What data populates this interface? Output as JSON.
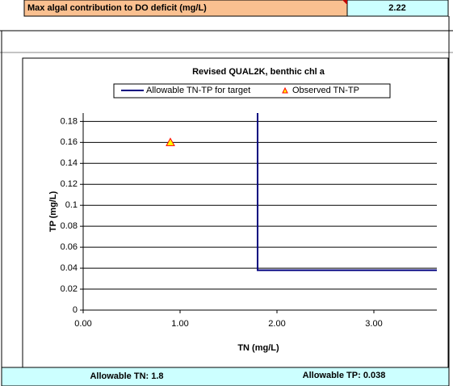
{
  "header_row": {
    "label": "Max algal contribution to DO deficit (mg/L)",
    "value": "2.22"
  },
  "chart_data": {
    "type": "line",
    "title": "Revised QUAL2K, benthic chl a",
    "x_label": "TN (mg/L)",
    "y_label": "TP (mg/L)",
    "series": [
      {
        "name": "Allowable TN-TP for target",
        "color": "#000080",
        "x": [
          1.8,
          1.8,
          3.65
        ],
        "values": [
          0.188,
          0.038,
          0.038
        ]
      },
      {
        "name": "Observed TN-TP",
        "type": "scatter",
        "color": "#ff0000",
        "fill": "#ffff00",
        "x": [
          0.9
        ],
        "values": [
          0.16
        ]
      }
    ],
    "xlim": [
      0,
      3.65
    ],
    "ylim": [
      0,
      0.188
    ],
    "xticks": [
      {
        "value": 0,
        "label": "0.00"
      },
      {
        "value": 1,
        "label": "1.00"
      },
      {
        "value": 2,
        "label": "2.00"
      },
      {
        "value": 3,
        "label": "3.00"
      }
    ],
    "yticks": [
      0,
      0.02,
      0.04,
      0.06,
      0.08,
      0.1,
      0.12,
      0.14,
      0.16,
      0.18
    ],
    "grid": true,
    "legend": "top"
  },
  "footer": {
    "allowable_tn": "Allowable TN: 1.8",
    "allowable_tp": "Allowable TP: 0.038"
  }
}
